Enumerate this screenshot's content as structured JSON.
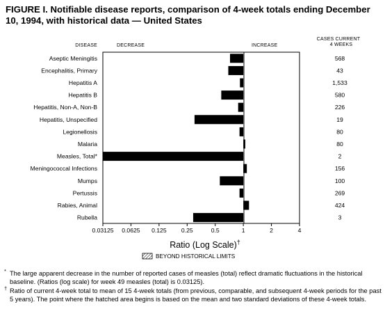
{
  "title": "FIGURE I. Notifiable disease reports, comparison of 4-week totals ending December 10, 1994, with historical data — United States",
  "headers": {
    "disease": "DISEASE",
    "decrease": "DECREASE",
    "increase": "INCREASE",
    "cases_line1": "CASES CURRENT",
    "cases_line2": "4 WEEKS"
  },
  "chart_data": {
    "type": "bar",
    "orientation": "horizontal",
    "xscale": "log2",
    "xlim": [
      0.03125,
      4
    ],
    "baseline": 1,
    "xlabel": "Ratio (Log Scale)",
    "xlabel_mark": "†",
    "xticks": [
      "0.03125",
      "0.0625",
      "0.125",
      "0.25",
      "0.5",
      "1",
      "2",
      "4"
    ],
    "tick_values": [
      0.03125,
      0.0625,
      0.125,
      0.25,
      0.5,
      1,
      2,
      4
    ],
    "categories": [
      "Aseptic Meningitis",
      "Encephalitis, Primary",
      "Hepatitis A",
      "Hepatitis B",
      "Hepatitis, Non-A, Non-B",
      "Hepatitis, Unspecified",
      "Legionellosis",
      "Malaria",
      "Measles, Total*",
      "Meningococcal Infections",
      "Mumps",
      "Pertussis",
      "Rabies, Animal",
      "Rubella"
    ],
    "values": [
      0.72,
      0.69,
      0.92,
      0.58,
      0.88,
      0.3,
      0.91,
      1.05,
      0.03125,
      1.09,
      0.56,
      0.91,
      1.15,
      0.29
    ],
    "cases_current_4_weeks": [
      "568",
      "43",
      "1,533",
      "580",
      "226",
      "19",
      "80",
      "80",
      "2",
      "156",
      "100",
      "269",
      "424",
      "3"
    ],
    "legend": [
      {
        "label": "BEYOND HISTORICAL LIMITS",
        "pattern": "hatched"
      }
    ],
    "bar_color": "#000000"
  },
  "footnotes": [
    {
      "mark": "*",
      "text": "The large apparent decrease in the number of reported cases of measles (total) reflect dramatic fluctuations in the historical baseline. (Ratios (log scale) for week 49 measles (total) is 0.03125)."
    },
    {
      "mark": "†",
      "text": "Ratio of current 4-week total to mean of 15 4-week totals (from previous, comparable, and subsequent 4-week periods for the past 5 years). The point where the hatched area begins is based on the mean and two standard deviations of these 4-week totals."
    }
  ]
}
